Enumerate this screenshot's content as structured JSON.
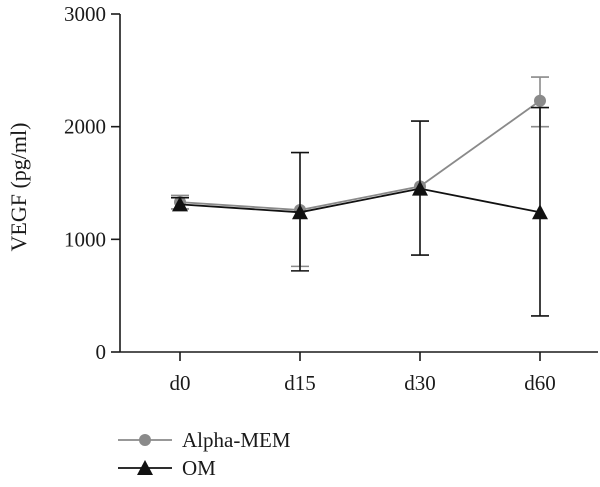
{
  "chart_data": {
    "type": "line",
    "title": "",
    "xlabel": "",
    "ylabel": "VEGF (pg/ml)",
    "categories": [
      "d0",
      "d15",
      "d30",
      "d60"
    ],
    "ylim": [
      0,
      3000
    ],
    "yticks": [
      "0",
      "1000",
      "2000",
      "3000"
    ],
    "grid": false,
    "legend_position": "bottom-left",
    "series": [
      {
        "name": "Alpha-MEM",
        "values": [
          1330,
          1260,
          1470,
          2230
        ],
        "err_low": [
          1270,
          760,
          1470,
          2000
        ],
        "err_high": [
          1390,
          1260,
          1470,
          2440
        ],
        "color": "#8a8a8a",
        "marker": "circle"
      },
      {
        "name": "OM",
        "values": [
          1310,
          1240,
          1450,
          1240
        ],
        "err_low": [
          1310,
          720,
          860,
          320
        ],
        "err_high": [
          1370,
          1770,
          2050,
          2170
        ],
        "color": "#111111",
        "marker": "triangle"
      }
    ]
  }
}
